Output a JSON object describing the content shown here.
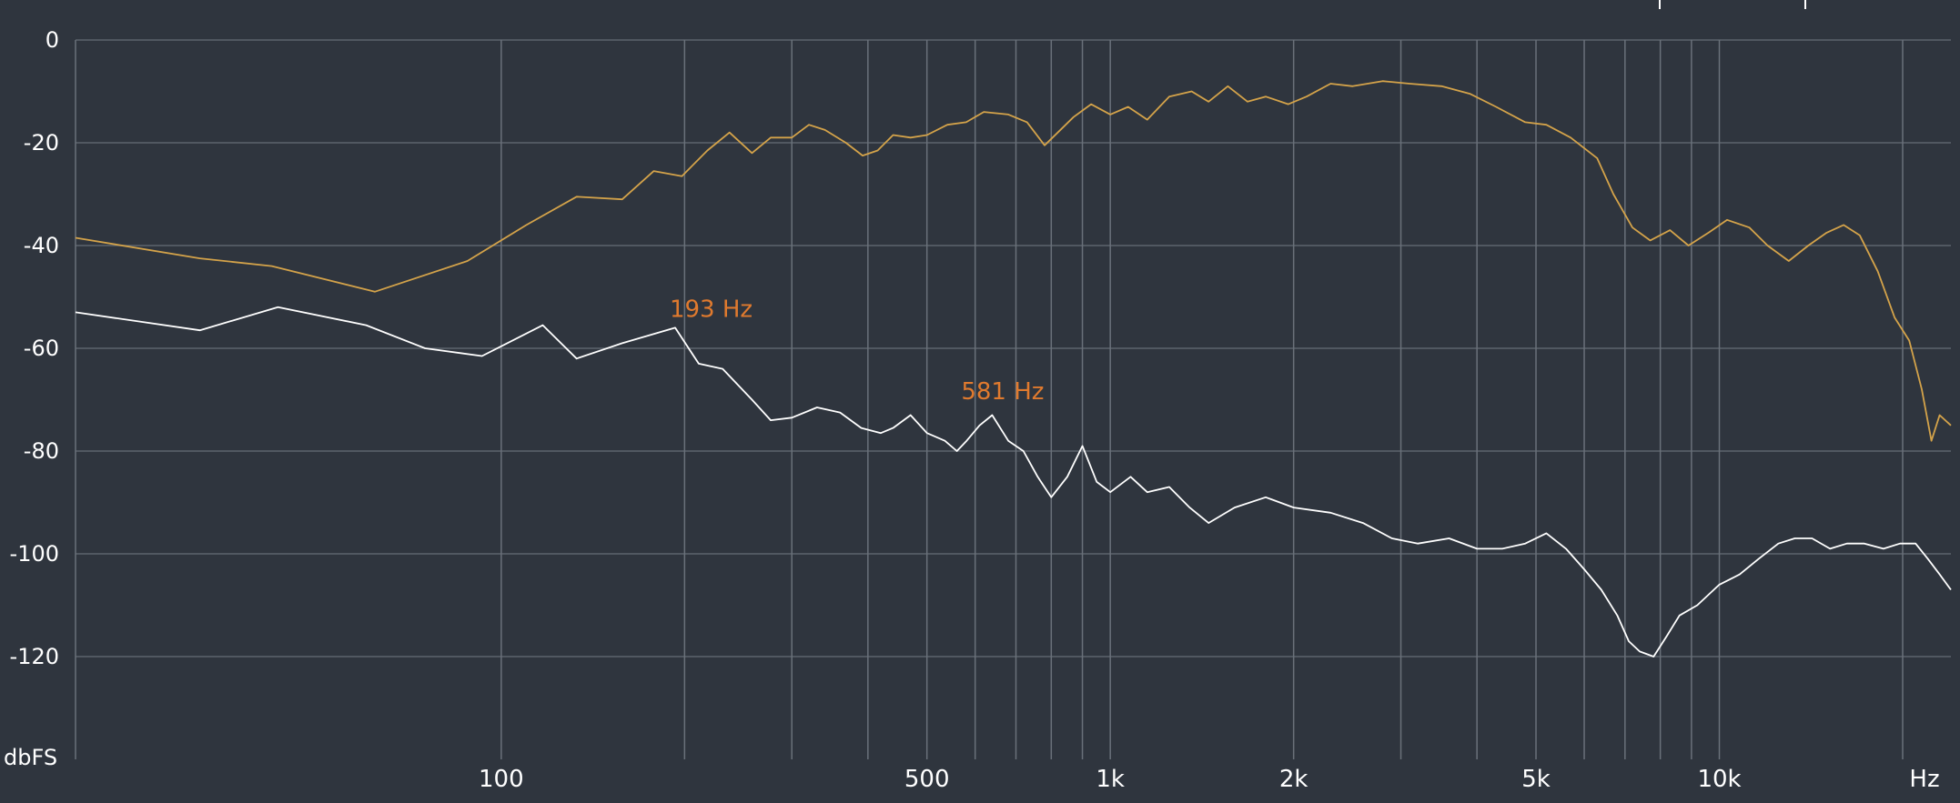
{
  "chart_data": {
    "type": "line",
    "x_scale": "log",
    "xlim": [
      20,
      24000
    ],
    "ylim": [
      -140,
      0
    ],
    "grid": true,
    "xlabel": "Hz",
    "ylabel": "dbFS",
    "y_ticks": [
      {
        "value": 0,
        "label": "0"
      },
      {
        "value": -20,
        "label": "-20"
      },
      {
        "value": -40,
        "label": "-40"
      },
      {
        "value": -60,
        "label": "-60"
      },
      {
        "value": -80,
        "label": "-80"
      },
      {
        "value": -100,
        "label": "-100"
      },
      {
        "value": -120,
        "label": "-120"
      }
    ],
    "x_ticks": [
      {
        "value": 100,
        "label": "100"
      },
      {
        "value": 500,
        "label": "500"
      },
      {
        "value": 1000,
        "label": "1k"
      },
      {
        "value": 2000,
        "label": "2k"
      },
      {
        "value": 5000,
        "label": "5k"
      },
      {
        "value": 10000,
        "label": "10k"
      }
    ],
    "x_grid_minor": [
      200,
      300,
      400,
      600,
      700,
      800,
      900,
      3000,
      4000,
      6000,
      7000,
      8000,
      9000,
      20000
    ],
    "series": [
      {
        "color": "#d4a34a",
        "points": [
          [
            20,
            -38.5
          ],
          [
            32,
            -42.5
          ],
          [
            42,
            -44
          ],
          [
            62,
            -49
          ],
          [
            88,
            -43
          ],
          [
            110,
            -36
          ],
          [
            133,
            -30.5
          ],
          [
            158,
            -31
          ],
          [
            178,
            -25.5
          ],
          [
            198,
            -26.5
          ],
          [
            218,
            -21.5
          ],
          [
            237,
            -18
          ],
          [
            258,
            -22
          ],
          [
            277,
            -19
          ],
          [
            300,
            -19
          ],
          [
            320,
            -16.5
          ],
          [
            340,
            -17.5
          ],
          [
            368,
            -20
          ],
          [
            392,
            -22.5
          ],
          [
            415,
            -21.5
          ],
          [
            440,
            -18.5
          ],
          [
            470,
            -19
          ],
          [
            500,
            -18.5
          ],
          [
            540,
            -16.5
          ],
          [
            580,
            -16
          ],
          [
            620,
            -14
          ],
          [
            680,
            -14.5
          ],
          [
            730,
            -16
          ],
          [
            780,
            -20.5
          ],
          [
            820,
            -18
          ],
          [
            870,
            -15
          ],
          [
            930,
            -12.5
          ],
          [
            1000,
            -14.5
          ],
          [
            1070,
            -13
          ],
          [
            1150,
            -15.5
          ],
          [
            1250,
            -11
          ],
          [
            1360,
            -10
          ],
          [
            1450,
            -12
          ],
          [
            1560,
            -9
          ],
          [
            1680,
            -12
          ],
          [
            1800,
            -11
          ],
          [
            1960,
            -12.5
          ],
          [
            2100,
            -11
          ],
          [
            2300,
            -8.5
          ],
          [
            2500,
            -9
          ],
          [
            2800,
            -8
          ],
          [
            3100,
            -8.5
          ],
          [
            3500,
            -9
          ],
          [
            3900,
            -10.5
          ],
          [
            4300,
            -13
          ],
          [
            4800,
            -16
          ],
          [
            5200,
            -16.5
          ],
          [
            5700,
            -19
          ],
          [
            6300,
            -23
          ],
          [
            6700,
            -30
          ],
          [
            7200,
            -36.5
          ],
          [
            7700,
            -39
          ],
          [
            8300,
            -37
          ],
          [
            8900,
            -40
          ],
          [
            9600,
            -37.5
          ],
          [
            10300,
            -35
          ],
          [
            11200,
            -36.5
          ],
          [
            12000,
            -40
          ],
          [
            13000,
            -43
          ],
          [
            14000,
            -40
          ],
          [
            15000,
            -37.5
          ],
          [
            16000,
            -36
          ],
          [
            17000,
            -38
          ],
          [
            18200,
            -45
          ],
          [
            19400,
            -54
          ],
          [
            20500,
            -58.5
          ],
          [
            21500,
            -68
          ],
          [
            22300,
            -78
          ],
          [
            23000,
            -73
          ],
          [
            24000,
            -75
          ]
        ]
      },
      {
        "color": "#ffffff",
        "points": [
          [
            20,
            -53
          ],
          [
            32,
            -56.5
          ],
          [
            43,
            -52
          ],
          [
            60,
            -55.5
          ],
          [
            75,
            -60
          ],
          [
            93,
            -61.5
          ],
          [
            117,
            -55.5
          ],
          [
            133,
            -62
          ],
          [
            158,
            -59
          ],
          [
            193,
            -56
          ],
          [
            211,
            -63
          ],
          [
            231,
            -64
          ],
          [
            258,
            -70
          ],
          [
            277,
            -74
          ],
          [
            300,
            -73.5
          ],
          [
            330,
            -71.5
          ],
          [
            360,
            -72.5
          ],
          [
            390,
            -75.5
          ],
          [
            420,
            -76.5
          ],
          [
            440,
            -75.5
          ],
          [
            470,
            -73
          ],
          [
            500,
            -76.5
          ],
          [
            535,
            -78
          ],
          [
            560,
            -80
          ],
          [
            581,
            -78
          ],
          [
            610,
            -75
          ],
          [
            640,
            -73
          ],
          [
            680,
            -78
          ],
          [
            720,
            -80
          ],
          [
            760,
            -85
          ],
          [
            800,
            -89
          ],
          [
            850,
            -85
          ],
          [
            900,
            -79
          ],
          [
            950,
            -86
          ],
          [
            1000,
            -88
          ],
          [
            1080,
            -85
          ],
          [
            1150,
            -88
          ],
          [
            1250,
            -87
          ],
          [
            1350,
            -91
          ],
          [
            1450,
            -94
          ],
          [
            1600,
            -91
          ],
          [
            1800,
            -89
          ],
          [
            2000,
            -91
          ],
          [
            2300,
            -92
          ],
          [
            2600,
            -94
          ],
          [
            2900,
            -97
          ],
          [
            3200,
            -98
          ],
          [
            3600,
            -97
          ],
          [
            4000,
            -99
          ],
          [
            4400,
            -99
          ],
          [
            4800,
            -98
          ],
          [
            5200,
            -96
          ],
          [
            5600,
            -99
          ],
          [
            6000,
            -103
          ],
          [
            6400,
            -107
          ],
          [
            6800,
            -112
          ],
          [
            7100,
            -117
          ],
          [
            7400,
            -119
          ],
          [
            7800,
            -120
          ],
          [
            8200,
            -116
          ],
          [
            8600,
            -112
          ],
          [
            9200,
            -110
          ],
          [
            10000,
            -106
          ],
          [
            10800,
            -104
          ],
          [
            11600,
            -101
          ],
          [
            12500,
            -98
          ],
          [
            13300,
            -97
          ],
          [
            14200,
            -97
          ],
          [
            15200,
            -99
          ],
          [
            16200,
            -98
          ],
          [
            17300,
            -98
          ],
          [
            18600,
            -99
          ],
          [
            19800,
            -98
          ],
          [
            21000,
            -98
          ],
          [
            22000,
            -101
          ],
          [
            23000,
            -104
          ],
          [
            24000,
            -107
          ]
        ]
      }
    ],
    "annotations": [
      {
        "text": "193 Hz",
        "x": 193,
        "y": -56
      },
      {
        "text": "581 Hz",
        "x": 581,
        "y": -72
      }
    ]
  }
}
